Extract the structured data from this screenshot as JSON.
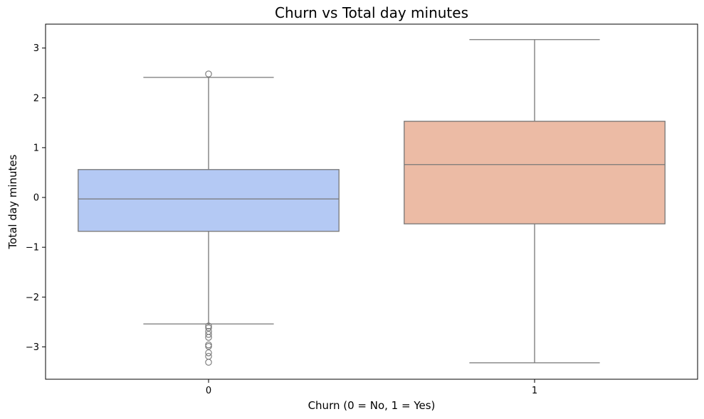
{
  "chart_data": {
    "type": "boxplot",
    "title": "Churn vs Total day minutes",
    "xlabel": "Churn (0 = No, 1 = Yes)",
    "ylabel": "Total day minutes",
    "categories": [
      "0",
      "1"
    ],
    "y_ticks": [
      3,
      2,
      1,
      0,
      -1,
      -2,
      -3
    ],
    "y_tick_labels": [
      "3",
      "2",
      "1",
      "0",
      "−1",
      "−2",
      "−3"
    ],
    "ylim": [
      -3.65,
      3.48
    ],
    "grid": false,
    "boxes": [
      {
        "category": "0",
        "color": "#b4c9f4",
        "whisker_low": -2.54,
        "q1": -0.68,
        "median": -0.03,
        "q3": 0.56,
        "whisker_high": 2.41,
        "outliers": [
          2.48,
          -2.58,
          -2.62,
          -2.69,
          -2.75,
          -2.81,
          -2.96,
          -2.99,
          -3.12,
          -3.19,
          -3.31
        ]
      },
      {
        "category": "1",
        "color": "#ecbba5",
        "whisker_low": -3.32,
        "q1": -0.53,
        "median": 0.66,
        "q3": 1.53,
        "whisker_high": 3.17,
        "outliers": []
      }
    ]
  }
}
